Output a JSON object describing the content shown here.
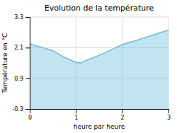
{
  "chart_data": {
    "type": "area",
    "title": "Evolution de la température",
    "xlabel": "heure par heure",
    "ylabel": "Température en °C",
    "x": [
      0,
      0.25,
      0.5,
      0.75,
      1.0,
      1.1,
      1.25,
      1.5,
      1.75,
      2.0,
      2.25,
      2.5,
      2.75,
      3.0
    ],
    "y": [
      2.25,
      2.12,
      1.98,
      1.72,
      1.52,
      1.5,
      1.62,
      1.8,
      2.0,
      2.22,
      2.35,
      2.5,
      2.65,
      2.78
    ],
    "color": "#66bbdd",
    "xlim": [
      0,
      3
    ],
    "xticks": [
      0,
      1,
      2,
      3
    ],
    "ylim": [
      -0.3,
      3.3
    ],
    "yticks": [
      -0.3,
      0.9,
      2.1,
      3.3
    ],
    "grid": true
  }
}
